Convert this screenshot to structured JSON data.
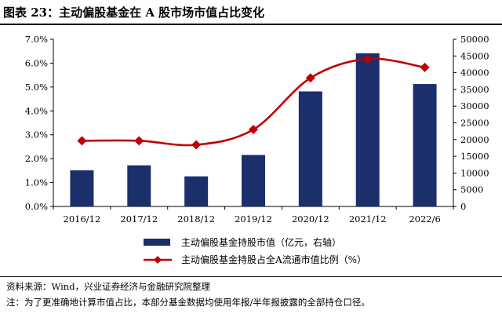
{
  "figure": {
    "title": "图表 23：主动偏股基金在 A 股市场市值占比变化",
    "source": "资料来源：Wind，兴业证券经济与金融研究院整理",
    "note": "注：为了更准确地计算市值占比，本部分基金数据均使用年报/半年报披露的全部持仓口径。"
  },
  "chart_data": {
    "type": "bar",
    "categories": [
      "2016/12",
      "2017/12",
      "2018/12",
      "2019/12",
      "2020/12",
      "2021/12",
      "2022/6"
    ],
    "series": [
      {
        "name": "主动偏股基金持股市值（亿元，右轴）",
        "type": "bar",
        "axis": "right",
        "values": [
          10800,
          12300,
          9000,
          15400,
          34400,
          45800,
          36600
        ]
      },
      {
        "name": "主动偏股基金持股占全A流通市值比例（%）",
        "type": "line",
        "axis": "left",
        "values": [
          2.75,
          2.75,
          2.58,
          3.22,
          5.38,
          6.18,
          5.82
        ]
      }
    ],
    "y_left": {
      "ylim": [
        0,
        7
      ],
      "ticks": [
        "0.0%",
        "1.0%",
        "2.0%",
        "3.0%",
        "4.0%",
        "5.0%",
        "6.0%",
        "7.0%"
      ]
    },
    "y_right": {
      "ylim": [
        0,
        50000
      ],
      "ticks": [
        "0",
        "5000",
        "10000",
        "15000",
        "20000",
        "25000",
        "30000",
        "35000",
        "40000",
        "45000",
        "50000"
      ]
    },
    "colors": {
      "bar": "#1b2f6b",
      "line": "#c00000"
    },
    "legend_position": "bottom"
  }
}
